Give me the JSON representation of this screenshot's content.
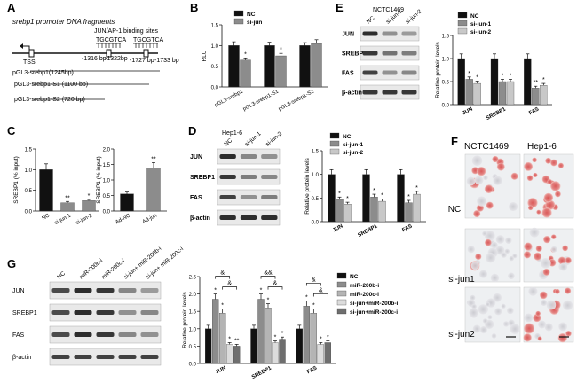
{
  "panels": {
    "A": {
      "label": "A",
      "title": "srebp1 promoter DNA fragments",
      "binding_sites": "JUN/AP-1  binding sites",
      "motif_left": "TGCGTCA",
      "motif_right": "TGCGTCA",
      "tss": "TSS",
      "positions": [
        "-1316 bp",
        "-1322bp",
        "-1727 bp",
        "-1733 bp"
      ],
      "constructs": [
        "pGL3-srebp1(1245bp)",
        "pGL3-srebp1-S1 (1100 bp)",
        "pGL3-srebp1-S2 (720 bp)"
      ]
    },
    "B": {
      "label": "B"
    },
    "C": {
      "label": "C"
    },
    "D": {
      "label": "D",
      "cell_line": "Hep1-6",
      "blot_lanes": [
        "NC",
        "si-jun-1",
        "si-jun-2"
      ],
      "blot_rows": [
        "JUN",
        "SREBP1",
        "FAS",
        "β-actin"
      ]
    },
    "E": {
      "label": "E",
      "cell_line": "NCTC1469",
      "blot_lanes": [
        "NC",
        "si-jun-1",
        "si-jun-2"
      ],
      "blot_rows": [
        "JUN",
        "SREBP1",
        "FAS",
        "β-actin"
      ]
    },
    "F": {
      "label": "F",
      "columns": [
        "NCTC1469",
        "Hep1-6"
      ],
      "rows": [
        "NC",
        "si-jun1",
        "si-jun2"
      ]
    },
    "G": {
      "label": "G",
      "blot_lanes": [
        "NC",
        "miR-200b-i",
        "miR-200c-i",
        "si-jun+ miR-200b-i",
        "si-jun+ miR-200c-i"
      ],
      "blot_rows": [
        "JUN",
        "SREBP1",
        "FAS",
        "β-actin"
      ]
    }
  },
  "chart_data": [
    {
      "id": "B",
      "type": "bar",
      "ylabel": "RLU",
      "ylim": [
        0,
        1.5
      ],
      "yticks": [
        "0.0",
        "0.5",
        "1.0",
        "1.5"
      ],
      "categories": [
        "pGL3-srebp1",
        "pGL3-srebp1-S1",
        "pGL3-srebp1-S2"
      ],
      "legend": [
        "NC",
        "si-jun"
      ],
      "series": [
        {
          "name": "NC",
          "color": "#111111",
          "values": [
            1.0,
            1.0,
            1.0
          ],
          "errors": [
            0.09,
            0.08,
            0.07
          ]
        },
        {
          "name": "si-jun",
          "color": "#8c8c8c",
          "values": [
            0.65,
            0.75,
            1.05
          ],
          "errors": [
            0.05,
            0.06,
            0.09
          ]
        }
      ],
      "annotations": [
        {
          "series": 1,
          "index": 0,
          "text": "*"
        },
        {
          "series": 1,
          "index": 1,
          "text": "*"
        }
      ]
    },
    {
      "id": "C1",
      "type": "bar",
      "ylabel": "SREBP1 (% input)",
      "ylim": [
        0,
        1.5
      ],
      "yticks": [
        "0.0",
        "0.5",
        "1.0",
        "1.5"
      ],
      "categories": [
        "NC",
        "si-jun-1",
        "si-jun-2"
      ],
      "series": [
        {
          "name": "ChIP",
          "colors": [
            "#111111",
            "#8c8c8c",
            "#8c8c8c"
          ],
          "values": [
            1.0,
            0.2,
            0.25
          ],
          "errors": [
            0.14,
            0.03,
            0.03
          ]
        }
      ],
      "annotations": [
        {
          "series": 0,
          "index": 1,
          "text": "**"
        },
        {
          "series": 0,
          "index": 2,
          "text": "*"
        }
      ]
    },
    {
      "id": "C2",
      "type": "bar",
      "ylabel": "SREBP1 (% input)",
      "ylim": [
        0,
        2.0
      ],
      "yticks": [
        "0.0",
        "0.5",
        "1.0",
        "1.5",
        "2.0"
      ],
      "categories": [
        "Ad-NC",
        "Ad-jun"
      ],
      "series": [
        {
          "name": "ChIP",
          "colors": [
            "#111111",
            "#8c8c8c"
          ],
          "values": [
            0.55,
            1.38
          ],
          "errors": [
            0.06,
            0.18
          ]
        }
      ],
      "annotations": [
        {
          "series": 0,
          "index": 1,
          "text": "**"
        }
      ]
    },
    {
      "id": "D",
      "type": "bar",
      "ylabel": "Relative protein levels",
      "ylim": [
        0,
        1.5
      ],
      "yticks": [
        "0.0",
        "0.5",
        "1.0",
        "1.5"
      ],
      "categories": [
        "JUN",
        "SREBP1",
        "FAS"
      ],
      "legend": [
        "NC",
        "si-jun-1",
        "si-jun-2"
      ],
      "series": [
        {
          "name": "NC",
          "color": "#111111",
          "values": [
            1.0,
            1.0,
            1.0
          ],
          "errors": [
            0.1,
            0.1,
            0.1
          ]
        },
        {
          "name": "si-jun-1",
          "color": "#8c8c8c",
          "values": [
            0.47,
            0.52,
            0.4
          ],
          "errors": [
            0.05,
            0.06,
            0.05
          ]
        },
        {
          "name": "si-jun-2",
          "color": "#c8c8c8",
          "values": [
            0.37,
            0.43,
            0.58
          ],
          "errors": [
            0.04,
            0.05,
            0.06
          ]
        }
      ],
      "annotations": [
        {
          "series": 1,
          "index": 0,
          "text": "*"
        },
        {
          "series": 2,
          "index": 0,
          "text": "*"
        },
        {
          "series": 1,
          "index": 1,
          "text": "*"
        },
        {
          "series": 2,
          "index": 1,
          "text": "*"
        },
        {
          "series": 1,
          "index": 2,
          "text": "*"
        },
        {
          "series": 2,
          "index": 2,
          "text": "*"
        }
      ]
    },
    {
      "id": "E",
      "type": "bar",
      "ylabel": "Relative protein levels",
      "ylim": [
        0,
        1.5
      ],
      "yticks": [
        "0.0",
        "0.5",
        "1.0",
        "1.5"
      ],
      "categories": [
        "JUN",
        "SREBP1",
        "FAS"
      ],
      "legend": [
        "NC",
        "si-jun-1",
        "si-jun-2"
      ],
      "series": [
        {
          "name": "NC",
          "color": "#111111",
          "values": [
            1.0,
            1.0,
            1.0
          ],
          "errors": [
            0.1,
            0.1,
            0.1
          ]
        },
        {
          "name": "si-jun-1",
          "color": "#8c8c8c",
          "values": [
            0.55,
            0.5,
            0.36
          ],
          "errors": [
            0.05,
            0.05,
            0.04
          ]
        },
        {
          "name": "si-jun-2",
          "color": "#c8c8c8",
          "values": [
            0.46,
            0.5,
            0.42
          ],
          "errors": [
            0.05,
            0.05,
            0.04
          ]
        }
      ],
      "annotations": [
        {
          "series": 1,
          "index": 0,
          "text": "*"
        },
        {
          "series": 2,
          "index": 0,
          "text": "*"
        },
        {
          "series": 1,
          "index": 1,
          "text": "*"
        },
        {
          "series": 2,
          "index": 1,
          "text": "*"
        },
        {
          "series": 1,
          "index": 2,
          "text": "**"
        },
        {
          "series": 2,
          "index": 2,
          "text": "*"
        }
      ]
    },
    {
      "id": "G",
      "type": "bar",
      "ylabel": "Relative protein levels",
      "ylim": [
        0,
        2.5
      ],
      "yticks": [
        "0.0",
        "0.5",
        "1.0",
        "1.5",
        "2.0",
        "2.5"
      ],
      "categories": [
        "JUN",
        "SREBP1",
        "FAS"
      ],
      "legend": [
        "NC",
        "miR-200b-i",
        "miR-200c-i",
        "si-jun+miR-200b-i",
        "si-jun+miR-200c-i"
      ],
      "series": [
        {
          "name": "NC",
          "color": "#111111",
          "values": [
            1.0,
            1.0,
            1.0
          ],
          "errors": [
            0.1,
            0.1,
            0.1
          ]
        },
        {
          "name": "miR-200b-i",
          "color": "#8c8c8c",
          "values": [
            1.85,
            1.85,
            1.65
          ],
          "errors": [
            0.15,
            0.15,
            0.15
          ]
        },
        {
          "name": "miR-200c-i",
          "color": "#b4b4b4",
          "values": [
            1.45,
            1.6,
            1.45
          ],
          "errors": [
            0.12,
            0.12,
            0.12
          ]
        },
        {
          "name": "si-jun+miR-200b-i",
          "color": "#dcdcdc",
          "values": [
            0.55,
            0.6,
            0.55
          ],
          "errors": [
            0.05,
            0.05,
            0.05
          ]
        },
        {
          "name": "si-jun+miR-200c-i",
          "color": "#6e6e6e",
          "values": [
            0.5,
            0.7,
            0.6
          ],
          "errors": [
            0.05,
            0.06,
            0.05
          ]
        }
      ],
      "annotations": [
        {
          "series": 1,
          "index": 0,
          "text": "*"
        },
        {
          "series": 2,
          "index": 0,
          "text": "*"
        },
        {
          "series": 3,
          "index": 0,
          "text": "*"
        },
        {
          "series": 4,
          "index": 0,
          "text": "**"
        },
        {
          "series": 1,
          "index": 1,
          "text": "*"
        },
        {
          "series": 2,
          "index": 1,
          "text": "*"
        },
        {
          "series": 3,
          "index": 1,
          "text": "*"
        },
        {
          "series": 4,
          "index": 1,
          "text": "*"
        },
        {
          "series": 1,
          "index": 2,
          "text": "*"
        },
        {
          "series": 2,
          "index": 2,
          "text": "*"
        },
        {
          "series": 3,
          "index": 2,
          "text": "*"
        },
        {
          "series": 4,
          "index": 2,
          "text": "*"
        }
      ],
      "brackets": [
        {
          "index": 0,
          "from": 1,
          "to": 3,
          "text": "&",
          "level": 2
        },
        {
          "index": 0,
          "from": 2,
          "to": 4,
          "text": "&",
          "level": 1
        },
        {
          "index": 1,
          "from": 1,
          "to": 3,
          "text": "&&",
          "level": 2
        },
        {
          "index": 1,
          "from": 2,
          "to": 4,
          "text": "&",
          "level": 1
        },
        {
          "index": 2,
          "from": 1,
          "to": 3,
          "text": "&",
          "level": 2
        },
        {
          "index": 2,
          "from": 2,
          "to": 4,
          "text": "&",
          "level": 1
        }
      ]
    }
  ]
}
